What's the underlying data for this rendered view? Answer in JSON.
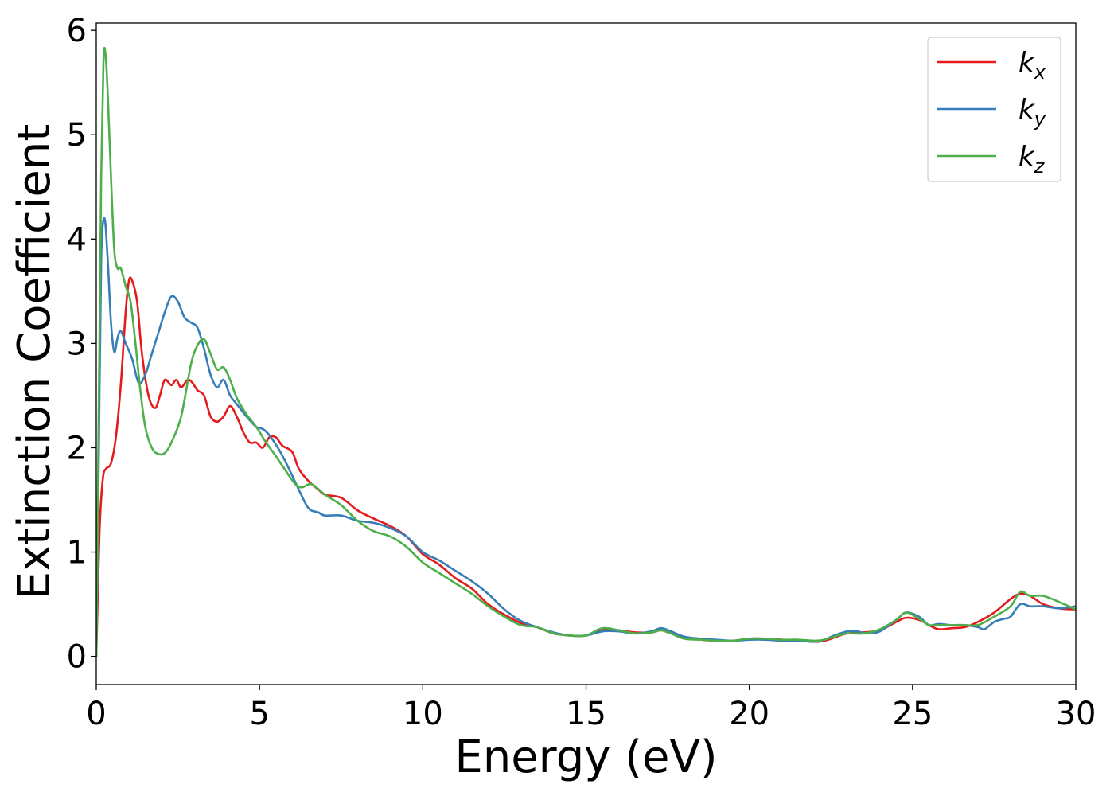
{
  "chart_data": {
    "type": "line",
    "title": "",
    "xlabel": "Energy (eV)",
    "ylabel": "Extinction Coefficient",
    "xlim": [
      0,
      30
    ],
    "ylim": [
      -0.27,
      6.07
    ],
    "xticks": [
      0,
      5,
      10,
      15,
      20,
      25,
      30
    ],
    "yticks": [
      0,
      1,
      2,
      3,
      4,
      5,
      6
    ],
    "grid": false,
    "legend_position": "top-right",
    "series": [
      {
        "name": "k_x",
        "label_base": "k",
        "label_sub": "x",
        "color": "#e41a1c",
        "points": [
          [
            0,
            0.0
          ],
          [
            0.1,
            1.2
          ],
          [
            0.2,
            1.7
          ],
          [
            0.3,
            1.8
          ],
          [
            0.45,
            1.85
          ],
          [
            0.6,
            2.1
          ],
          [
            0.75,
            2.6
          ],
          [
            0.9,
            3.3
          ],
          [
            1.0,
            3.6
          ],
          [
            1.1,
            3.6
          ],
          [
            1.25,
            3.4
          ],
          [
            1.4,
            2.9
          ],
          [
            1.6,
            2.5
          ],
          [
            1.8,
            2.38
          ],
          [
            1.95,
            2.5
          ],
          [
            2.1,
            2.65
          ],
          [
            2.3,
            2.6
          ],
          [
            2.45,
            2.65
          ],
          [
            2.6,
            2.58
          ],
          [
            2.8,
            2.65
          ],
          [
            2.95,
            2.62
          ],
          [
            3.1,
            2.55
          ],
          [
            3.3,
            2.5
          ],
          [
            3.5,
            2.3
          ],
          [
            3.7,
            2.25
          ],
          [
            3.9,
            2.3
          ],
          [
            4.1,
            2.4
          ],
          [
            4.3,
            2.3
          ],
          [
            4.5,
            2.15
          ],
          [
            4.7,
            2.05
          ],
          [
            4.9,
            2.05
          ],
          [
            5.1,
            2.0
          ],
          [
            5.3,
            2.1
          ],
          [
            5.5,
            2.1
          ],
          [
            5.7,
            2.02
          ],
          [
            6.0,
            1.96
          ],
          [
            6.2,
            1.8
          ],
          [
            6.5,
            1.68
          ],
          [
            6.8,
            1.6
          ],
          [
            7.0,
            1.55
          ],
          [
            7.5,
            1.52
          ],
          [
            8.0,
            1.4
          ],
          [
            8.5,
            1.32
          ],
          [
            9.0,
            1.25
          ],
          [
            9.5,
            1.15
          ],
          [
            10.0,
            0.98
          ],
          [
            10.5,
            0.88
          ],
          [
            11.0,
            0.75
          ],
          [
            11.5,
            0.65
          ],
          [
            12.0,
            0.5
          ],
          [
            12.5,
            0.4
          ],
          [
            13.0,
            0.32
          ],
          [
            13.5,
            0.28
          ],
          [
            14.0,
            0.22
          ],
          [
            14.5,
            0.2
          ],
          [
            15.0,
            0.2
          ],
          [
            15.5,
            0.26
          ],
          [
            16.0,
            0.25
          ],
          [
            16.5,
            0.23
          ],
          [
            17.0,
            0.23
          ],
          [
            17.3,
            0.25
          ],
          [
            17.6,
            0.22
          ],
          [
            18.0,
            0.18
          ],
          [
            18.5,
            0.16
          ],
          [
            19.0,
            0.15
          ],
          [
            19.5,
            0.15
          ],
          [
            20.0,
            0.17
          ],
          [
            20.5,
            0.17
          ],
          [
            21.0,
            0.16
          ],
          [
            21.5,
            0.15
          ],
          [
            22.0,
            0.14
          ],
          [
            22.3,
            0.15
          ],
          [
            22.6,
            0.18
          ],
          [
            23.0,
            0.22
          ],
          [
            23.5,
            0.23
          ],
          [
            24.0,
            0.25
          ],
          [
            24.5,
            0.33
          ],
          [
            24.8,
            0.37
          ],
          [
            25.2,
            0.35
          ],
          [
            25.5,
            0.3
          ],
          [
            25.8,
            0.26
          ],
          [
            26.2,
            0.27
          ],
          [
            26.6,
            0.28
          ],
          [
            27.0,
            0.33
          ],
          [
            27.5,
            0.42
          ],
          [
            28.0,
            0.55
          ],
          [
            28.3,
            0.6
          ],
          [
            28.6,
            0.58
          ],
          [
            29.0,
            0.5
          ],
          [
            29.5,
            0.46
          ],
          [
            30.0,
            0.45
          ]
        ]
      },
      {
        "name": "k_y",
        "label_base": "k",
        "label_sub": "y",
        "color": "#377eb8",
        "points": [
          [
            0,
            0.0
          ],
          [
            0.08,
            2.0
          ],
          [
            0.15,
            3.8
          ],
          [
            0.25,
            4.2
          ],
          [
            0.35,
            3.8
          ],
          [
            0.45,
            3.2
          ],
          [
            0.55,
            2.92
          ],
          [
            0.65,
            3.05
          ],
          [
            0.75,
            3.12
          ],
          [
            0.9,
            3.0
          ],
          [
            1.1,
            2.85
          ],
          [
            1.3,
            2.62
          ],
          [
            1.5,
            2.7
          ],
          [
            1.7,
            2.9
          ],
          [
            1.9,
            3.1
          ],
          [
            2.1,
            3.3
          ],
          [
            2.3,
            3.45
          ],
          [
            2.5,
            3.4
          ],
          [
            2.7,
            3.25
          ],
          [
            2.9,
            3.2
          ],
          [
            3.1,
            3.15
          ],
          [
            3.3,
            2.95
          ],
          [
            3.5,
            2.7
          ],
          [
            3.7,
            2.58
          ],
          [
            3.9,
            2.65
          ],
          [
            4.1,
            2.5
          ],
          [
            4.3,
            2.42
          ],
          [
            4.6,
            2.3
          ],
          [
            4.9,
            2.2
          ],
          [
            5.1,
            2.18
          ],
          [
            5.3,
            2.12
          ],
          [
            5.6,
            1.98
          ],
          [
            5.9,
            1.8
          ],
          [
            6.2,
            1.6
          ],
          [
            6.5,
            1.42
          ],
          [
            6.8,
            1.38
          ],
          [
            7.0,
            1.35
          ],
          [
            7.5,
            1.35
          ],
          [
            8.0,
            1.3
          ],
          [
            8.5,
            1.28
          ],
          [
            9.0,
            1.23
          ],
          [
            9.5,
            1.15
          ],
          [
            10.0,
            1.0
          ],
          [
            10.5,
            0.92
          ],
          [
            11.0,
            0.82
          ],
          [
            11.5,
            0.72
          ],
          [
            12.0,
            0.6
          ],
          [
            12.5,
            0.45
          ],
          [
            13.0,
            0.34
          ],
          [
            13.5,
            0.28
          ],
          [
            14.0,
            0.23
          ],
          [
            14.5,
            0.2
          ],
          [
            15.0,
            0.2
          ],
          [
            15.5,
            0.24
          ],
          [
            16.0,
            0.24
          ],
          [
            16.5,
            0.22
          ],
          [
            17.0,
            0.24
          ],
          [
            17.3,
            0.27
          ],
          [
            17.6,
            0.24
          ],
          [
            18.0,
            0.19
          ],
          [
            18.5,
            0.17
          ],
          [
            19.0,
            0.16
          ],
          [
            19.5,
            0.15
          ],
          [
            20.0,
            0.16
          ],
          [
            20.5,
            0.16
          ],
          [
            21.0,
            0.15
          ],
          [
            21.5,
            0.15
          ],
          [
            22.0,
            0.14
          ],
          [
            22.3,
            0.16
          ],
          [
            22.6,
            0.2
          ],
          [
            23.0,
            0.24
          ],
          [
            23.3,
            0.24
          ],
          [
            23.6,
            0.22
          ],
          [
            24.0,
            0.24
          ],
          [
            24.5,
            0.35
          ],
          [
            24.8,
            0.42
          ],
          [
            25.2,
            0.38
          ],
          [
            25.5,
            0.3
          ],
          [
            25.8,
            0.31
          ],
          [
            26.2,
            0.3
          ],
          [
            26.6,
            0.3
          ],
          [
            27.0,
            0.28
          ],
          [
            27.2,
            0.26
          ],
          [
            27.5,
            0.33
          ],
          [
            27.8,
            0.36
          ],
          [
            28.0,
            0.38
          ],
          [
            28.3,
            0.5
          ],
          [
            28.6,
            0.48
          ],
          [
            29.0,
            0.48
          ],
          [
            29.5,
            0.46
          ],
          [
            30.0,
            0.48
          ]
        ]
      },
      {
        "name": "k_z",
        "label_base": "k",
        "label_sub": "z",
        "color": "#4daf4a",
        "points": [
          [
            0,
            0.0
          ],
          [
            0.08,
            2.5
          ],
          [
            0.15,
            4.6
          ],
          [
            0.22,
            5.7
          ],
          [
            0.28,
            5.78
          ],
          [
            0.35,
            5.4
          ],
          [
            0.45,
            4.6
          ],
          [
            0.55,
            3.9
          ],
          [
            0.65,
            3.72
          ],
          [
            0.75,
            3.72
          ],
          [
            0.9,
            3.55
          ],
          [
            1.05,
            3.4
          ],
          [
            1.2,
            3.0
          ],
          [
            1.35,
            2.55
          ],
          [
            1.5,
            2.2
          ],
          [
            1.7,
            2.0
          ],
          [
            1.9,
            1.94
          ],
          [
            2.1,
            1.95
          ],
          [
            2.3,
            2.05
          ],
          [
            2.6,
            2.3
          ],
          [
            2.9,
            2.8
          ],
          [
            3.1,
            2.98
          ],
          [
            3.3,
            3.04
          ],
          [
            3.5,
            2.9
          ],
          [
            3.7,
            2.75
          ],
          [
            3.9,
            2.77
          ],
          [
            4.1,
            2.65
          ],
          [
            4.3,
            2.48
          ],
          [
            4.6,
            2.32
          ],
          [
            4.9,
            2.2
          ],
          [
            5.2,
            2.05
          ],
          [
            5.5,
            1.92
          ],
          [
            5.8,
            1.78
          ],
          [
            6.1,
            1.65
          ],
          [
            6.3,
            1.62
          ],
          [
            6.6,
            1.65
          ],
          [
            7.0,
            1.55
          ],
          [
            7.5,
            1.45
          ],
          [
            8.0,
            1.3
          ],
          [
            8.5,
            1.2
          ],
          [
            9.0,
            1.15
          ],
          [
            9.5,
            1.05
          ],
          [
            10.0,
            0.9
          ],
          [
            10.5,
            0.8
          ],
          [
            11.0,
            0.7
          ],
          [
            11.5,
            0.6
          ],
          [
            12.0,
            0.48
          ],
          [
            12.5,
            0.38
          ],
          [
            13.0,
            0.3
          ],
          [
            13.5,
            0.28
          ],
          [
            14.0,
            0.22
          ],
          [
            14.5,
            0.2
          ],
          [
            15.0,
            0.2
          ],
          [
            15.5,
            0.27
          ],
          [
            16.0,
            0.25
          ],
          [
            16.5,
            0.22
          ],
          [
            17.0,
            0.23
          ],
          [
            17.3,
            0.25
          ],
          [
            17.6,
            0.22
          ],
          [
            18.0,
            0.17
          ],
          [
            18.5,
            0.16
          ],
          [
            19.0,
            0.15
          ],
          [
            19.5,
            0.15
          ],
          [
            20.0,
            0.17
          ],
          [
            20.5,
            0.17
          ],
          [
            21.0,
            0.16
          ],
          [
            21.5,
            0.16
          ],
          [
            22.0,
            0.15
          ],
          [
            22.3,
            0.16
          ],
          [
            22.6,
            0.19
          ],
          [
            23.0,
            0.22
          ],
          [
            23.5,
            0.22
          ],
          [
            24.0,
            0.26
          ],
          [
            24.5,
            0.35
          ],
          [
            24.8,
            0.42
          ],
          [
            25.2,
            0.36
          ],
          [
            25.5,
            0.3
          ],
          [
            25.8,
            0.3
          ],
          [
            26.2,
            0.3
          ],
          [
            26.6,
            0.3
          ],
          [
            27.0,
            0.3
          ],
          [
            27.5,
            0.38
          ],
          [
            28.0,
            0.48
          ],
          [
            28.3,
            0.62
          ],
          [
            28.6,
            0.58
          ],
          [
            29.0,
            0.58
          ],
          [
            29.5,
            0.52
          ],
          [
            30.0,
            0.45
          ]
        ]
      }
    ]
  }
}
